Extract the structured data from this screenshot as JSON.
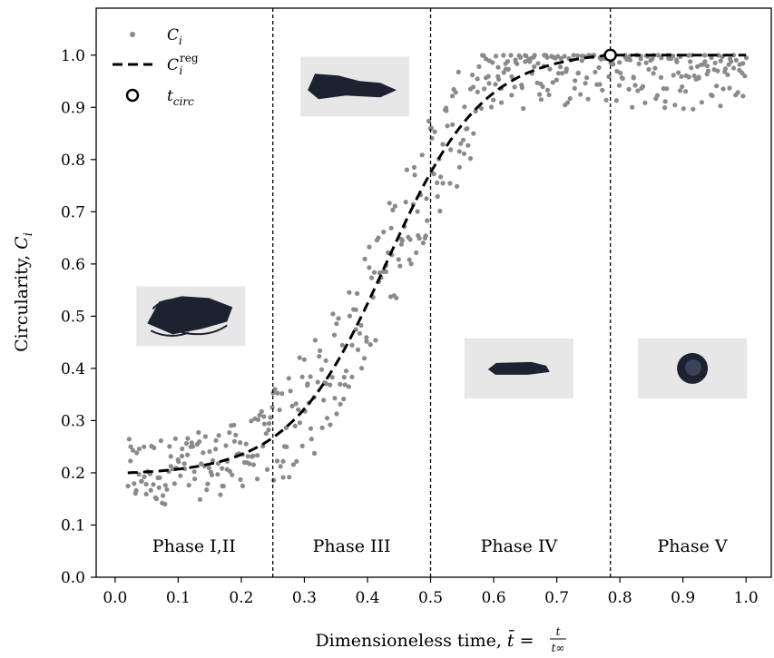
{
  "chart_data": {
    "type": "scatter",
    "xlabel": "Dimensioneless time, t̄ = t/t∞",
    "xlabel_parts": {
      "prefix": "Dimensioneless time, ",
      "var": "t̄",
      "eq": " = ",
      "num": "t",
      "den": "t∞"
    },
    "ylabel": "Circularity, Ci",
    "ylabel_parts": {
      "prefix": "Circularity, ",
      "var": "C",
      "sub": "i"
    },
    "xlim": [
      -0.03,
      1.04
    ],
    "ylim": [
      0.0,
      1.09
    ],
    "xticks": [
      "0.0",
      "0.1",
      "0.2",
      "0.3",
      "0.4",
      "0.5",
      "0.6",
      "0.7",
      "0.8",
      "0.9",
      "1.0"
    ],
    "yticks": [
      "0.0",
      "0.1",
      "0.2",
      "0.3",
      "0.4",
      "0.5",
      "0.6",
      "0.7",
      "0.8",
      "0.9",
      "1.0"
    ],
    "grid": false,
    "legend": {
      "position": "top-left",
      "entries": [
        {
          "label": "C",
          "sub": "i",
          "sup": "",
          "marker": "dot"
        },
        {
          "label": "C",
          "sub": "i",
          "sup": "reg",
          "marker": "dashed-line"
        },
        {
          "label": "t",
          "sub": "circ",
          "sup": "",
          "marker": "open-circle"
        }
      ]
    },
    "phase_boundaries": [
      0.25,
      0.5,
      0.785
    ],
    "phases": [
      {
        "label": "Phase I,II",
        "x_center": 0.125
      },
      {
        "label": "Phase III",
        "x_center": 0.375
      },
      {
        "label": "Phase IV",
        "x_center": 0.64
      },
      {
        "label": "Phase V",
        "x_center": 0.915
      }
    ],
    "regression": {
      "name": "Ci reg",
      "form": "sigmoid",
      "ymin": 0.2,
      "ymax": 1.0,
      "x_start": 0.02,
      "x_circ": 0.785,
      "x_end": 1.0
    },
    "t_circ": {
      "x": 0.785,
      "y": 1.0
    },
    "series_description": "Ci scatter: ~0.15-0.29 for t<0.25, rising through 0.3-0.9 over 0.25-0.55, ~0.88-1.0 for t>0.55",
    "photos": [
      {
        "name": "photo-phase-1",
        "x_center": 0.12,
        "y_center": 0.5
      },
      {
        "name": "photo-phase-3",
        "x_center": 0.38,
        "y_center": 0.94
      },
      {
        "name": "photo-phase-4",
        "x_center": 0.64,
        "y_center": 0.4
      },
      {
        "name": "photo-phase-5",
        "x_center": 0.915,
        "y_center": 0.4
      }
    ],
    "colors": {
      "points": "#8a8a8a",
      "line": "#000000",
      "axis": "#000000",
      "photo_bg": "#e7e7e7",
      "sample": "#1c2230"
    }
  }
}
